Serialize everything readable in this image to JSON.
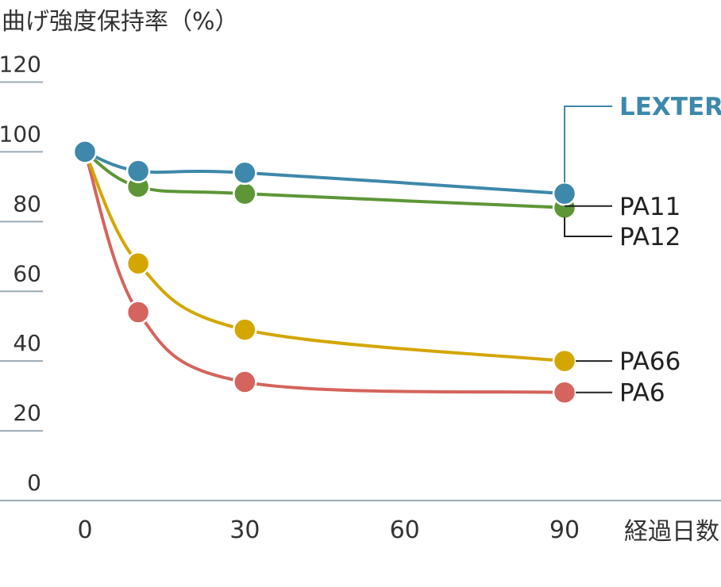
{
  "chart_data": {
    "type": "line",
    "title": "曲げ強度保持率（%）",
    "xlabel": "経過日数",
    "ylabel": "",
    "x": [
      0,
      10,
      30,
      90
    ],
    "xticks": [
      0,
      30,
      60,
      90
    ],
    "yticks": [
      0,
      20,
      40,
      60,
      80,
      100,
      120
    ],
    "xlim": [
      0,
      90
    ],
    "ylim": [
      0,
      120
    ],
    "grid": false,
    "series": [
      {
        "labels": [
          "PA6"
        ],
        "color": "#d4645d",
        "values": [
          100,
          54,
          34,
          31
        ]
      },
      {
        "labels": [
          "PA66"
        ],
        "color": "#d4a600",
        "values": [
          100,
          68,
          49,
          40
        ]
      },
      {
        "labels": [
          "PA11",
          "PA12"
        ],
        "color": "#5e9637",
        "values": [
          100,
          90,
          88,
          84
        ]
      },
      {
        "labels": [
          "LEXTER"
        ],
        "color": "#3d88ab",
        "values": [
          100,
          94.5,
          94,
          88
        ],
        "highlight": true
      }
    ]
  }
}
